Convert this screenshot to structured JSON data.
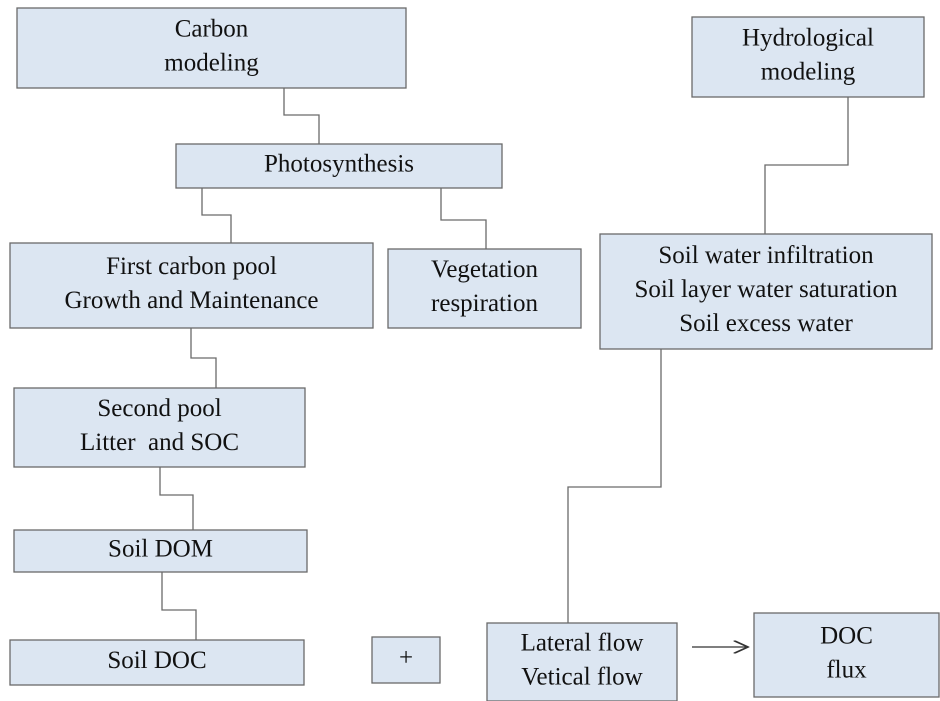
{
  "nodes": [
    {
      "lines": [
        "Carbon",
        "modeling"
      ]
    },
    {
      "lines": [
        "Photosynthesis"
      ]
    },
    {
      "lines": [
        "First carbon pool",
        "Growth and Maintenance"
      ]
    },
    {
      "lines": [
        "Vegetation",
        "respiration"
      ]
    },
    {
      "lines": [
        "Second pool",
        "Litter  and SOC"
      ]
    },
    {
      "lines": [
        "Soil DOM"
      ]
    },
    {
      "lines": [
        "Soil DOC"
      ]
    },
    {
      "lines": [
        "+"
      ]
    },
    {
      "lines": [
        "Hydrological",
        "modeling"
      ]
    },
    {
      "lines": [
        "Soil water infiltration",
        "Soil layer water saturation",
        "Soil excess water"
      ]
    },
    {
      "lines": [
        "Lateral flow",
        "Vetical flow"
      ]
    },
    {
      "lines": [
        "DOC",
        "flux"
      ]
    }
  ]
}
